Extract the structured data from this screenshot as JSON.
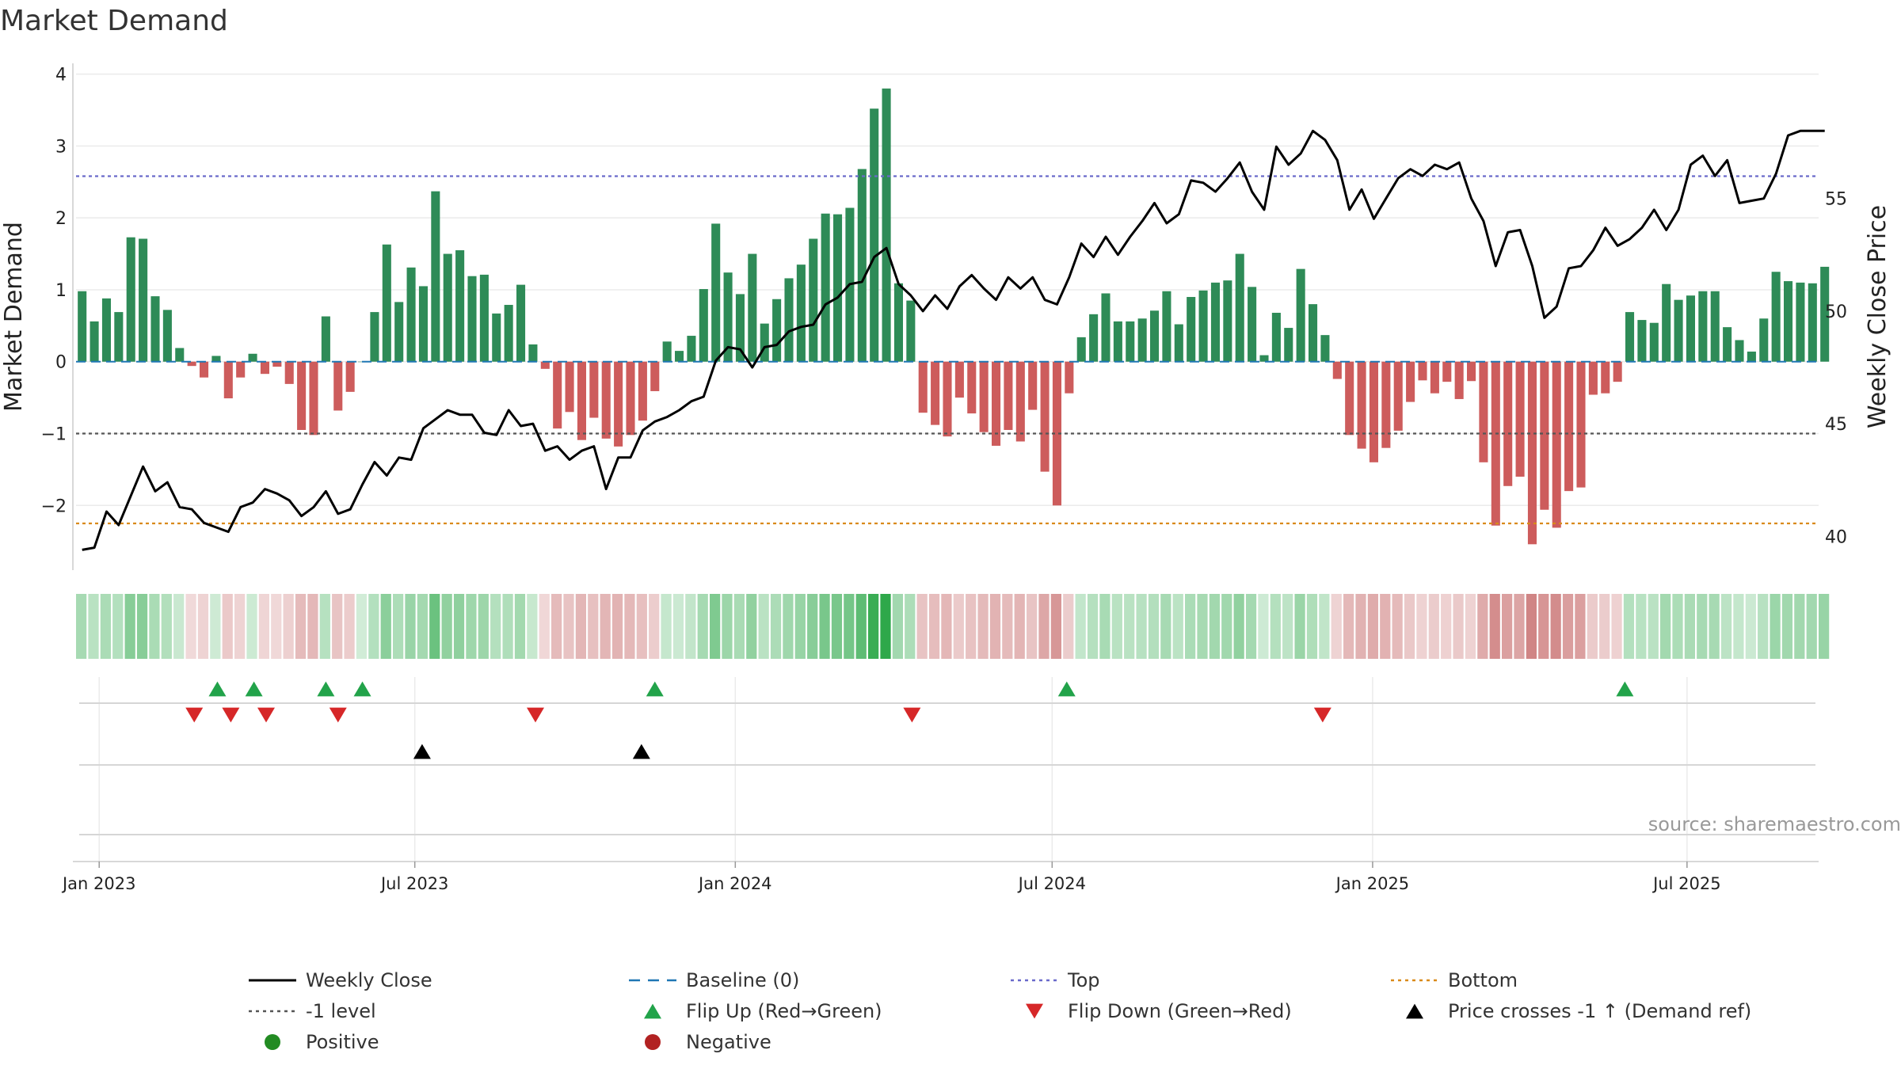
{
  "title": "Market Demand",
  "source": "source: sharemaestro.com",
  "chart_data": {
    "type": "bar+line",
    "title": "Market Demand",
    "ylabel_left": "Market Demand",
    "ylabel_right": "Weekly Close Price",
    "ylim_left": [
      -2.9,
      4.15
    ],
    "ylim_right": [
      38.5,
      61.0
    ],
    "left_ticks": [
      -2,
      -1,
      0,
      1,
      2,
      3,
      4
    ],
    "left_tick_labels": [
      "−2",
      "−1",
      "0",
      "1",
      "2",
      "3",
      "4"
    ],
    "right_ticks": [
      40,
      45,
      50,
      55
    ],
    "right_tick_labels": [
      "40",
      "45",
      "50",
      "55"
    ],
    "x_start": "2022-12-25",
    "x_end": "2025-09-21",
    "weeks": 143,
    "x_ticks": [
      {
        "label": "Jan 2023",
        "week": 1.4
      },
      {
        "label": "Jul 2023",
        "week": 27.3
      },
      {
        "label": "Jan 2024",
        "week": 53.6
      },
      {
        "label": "Jul 2024",
        "week": 79.6
      },
      {
        "label": "Jan 2025",
        "week": 105.9
      },
      {
        "label": "Jul 2025",
        "week": 131.7
      }
    ],
    "reference_lines": {
      "top": 2.58,
      "minus_one": -1.0,
      "bottom": -2.25,
      "baseline": 0
    },
    "demand": [
      0.98,
      0.56,
      0.88,
      0.69,
      1.73,
      1.71,
      0.91,
      0.72,
      0.19,
      -0.06,
      -0.22,
      0.08,
      -0.51,
      -0.22,
      0.11,
      -0.17,
      -0.07,
      -0.31,
      -0.95,
      -1.02,
      0.63,
      -0.68,
      -0.42,
      0.0,
      0.69,
      1.63,
      0.83,
      1.31,
      1.05,
      2.37,
      1.5,
      1.55,
      1.19,
      1.21,
      0.67,
      0.79,
      1.07,
      0.24,
      -0.1,
      -0.93,
      -0.7,
      -1.09,
      -0.78,
      -1.07,
      -1.18,
      -1.02,
      -0.82,
      -0.41,
      0.28,
      0.15,
      0.36,
      1.01,
      1.92,
      1.24,
      0.94,
      1.5,
      0.53,
      0.87,
      1.16,
      1.35,
      1.71,
      2.06,
      2.05,
      2.14,
      2.68,
      3.52,
      3.8,
      1.09,
      0.85,
      -0.71,
      -0.88,
      -1.04,
      -0.5,
      -0.72,
      -0.98,
      -1.17,
      -0.95,
      -1.11,
      -0.67,
      -1.53,
      -2.0,
      -0.44,
      0.34,
      0.66,
      0.95,
      0.56,
      0.56,
      0.6,
      0.71,
      0.98,
      0.52,
      0.9,
      0.99,
      1.1,
      1.13,
      1.5,
      1.04,
      0.09,
      0.68,
      0.47,
      1.29,
      0.8,
      0.37,
      -0.24,
      -1.02,
      -1.21,
      -1.4,
      -1.2,
      -0.96,
      -0.56,
      -0.26,
      -0.44,
      -0.28,
      -0.52,
      -0.27,
      -1.4,
      -2.28,
      -1.73,
      -1.6,
      -2.54,
      -2.06,
      -2.31,
      -1.8,
      -1.75,
      -0.46,
      -0.44,
      -0.28,
      0.69,
      0.58,
      0.54,
      1.08,
      0.86,
      0.92,
      0.98,
      0.98,
      0.48,
      0.3,
      0.14,
      0.6,
      1.25,
      1.12,
      1.1,
      1.09,
      1.32
    ],
    "close": [
      39.4,
      39.5,
      41.1,
      40.5,
      41.8,
      43.1,
      42.0,
      42.4,
      41.3,
      41.2,
      40.6,
      40.4,
      40.2,
      41.3,
      41.5,
      42.1,
      41.9,
      41.6,
      40.9,
      41.3,
      42.0,
      41.0,
      41.2,
      42.3,
      43.3,
      42.7,
      43.5,
      43.4,
      44.8,
      45.2,
      45.6,
      45.4,
      45.4,
      44.6,
      44.5,
      45.6,
      44.9,
      45.0,
      43.8,
      44.0,
      43.4,
      43.8,
      44.0,
      42.1,
      43.5,
      43.5,
      44.7,
      45.1,
      45.3,
      45.6,
      46.0,
      46.2,
      47.8,
      48.4,
      48.3,
      47.5,
      48.4,
      48.5,
      49.1,
      49.3,
      49.4,
      50.3,
      50.6,
      51.2,
      51.3,
      52.4,
      52.8,
      51.2,
      50.7,
      50.0,
      50.7,
      50.1,
      51.1,
      51.6,
      51.0,
      50.5,
      51.5,
      51.0,
      51.5,
      50.5,
      50.3,
      51.5,
      53.0,
      52.4,
      53.3,
      52.5,
      53.3,
      54.0,
      54.8,
      53.9,
      54.3,
      55.8,
      55.7,
      55.3,
      55.9,
      56.6,
      55.3,
      54.5,
      57.3,
      56.5,
      57.0,
      58.0,
      57.6,
      56.7,
      54.5,
      55.4,
      54.1,
      55.0,
      55.9,
      56.3,
      56.0,
      56.5,
      56.3,
      56.6,
      55.0,
      54.0,
      52.0,
      53.5,
      53.6,
      52.0,
      49.7,
      50.2,
      51.9,
      52.0,
      52.7,
      53.7,
      52.9,
      53.2,
      53.7,
      54.5,
      53.6,
      54.5,
      56.5,
      56.9,
      56.0,
      56.7,
      54.8,
      54.9,
      55.0,
      56.1,
      57.8,
      58.0,
      58.0,
      58.0
    ],
    "flip_up_weeks": [
      11.1,
      14.1,
      20.0,
      23.0,
      47.0,
      80.8,
      126.6
    ],
    "flip_down_weeks": [
      9.2,
      12.2,
      15.1,
      21.0,
      37.2,
      68.1,
      101.8
    ],
    "price_cross_weeks": [
      27.9,
      45.9
    ],
    "legend": [
      {
        "label": "Weekly Close",
        "symbol": "solid-line",
        "color": "#000000"
      },
      {
        "label": "Baseline (0)",
        "symbol": "dash-line",
        "color": "#1f77b4"
      },
      {
        "label": "Top",
        "symbol": "dot-line",
        "color": "#6a6acb"
      },
      {
        "label": "Bottom",
        "symbol": "dot-line",
        "color": "#d98a1a"
      },
      {
        "label": "-1 level",
        "symbol": "dot-line",
        "color": "#555555"
      },
      {
        "label": "Flip Up (Red→Green)",
        "symbol": "triangle-up",
        "color": "#22a34a"
      },
      {
        "label": "Flip Down (Green→Red)",
        "symbol": "triangle-down",
        "color": "#d62728"
      },
      {
        "label": "Price crosses -1 ↑ (Demand ref)",
        "symbol": "triangle-up",
        "color": "#000000"
      },
      {
        "label": "Positive",
        "symbol": "circle",
        "color": "#228b22"
      },
      {
        "label": "Negative",
        "symbol": "circle",
        "color": "#b22222"
      }
    ],
    "colors": {
      "positive_bar": "#2e8b57",
      "negative_bar": "#cd5c5c",
      "price_line": "#000000",
      "baseline": "#1f77b4",
      "top_line": "#6a6acb",
      "bottom_line": "#d98a1a",
      "minus_one_line": "#555555",
      "flip_up": "#22a34a",
      "flip_down": "#d62728",
      "price_cross": "#000000"
    }
  }
}
